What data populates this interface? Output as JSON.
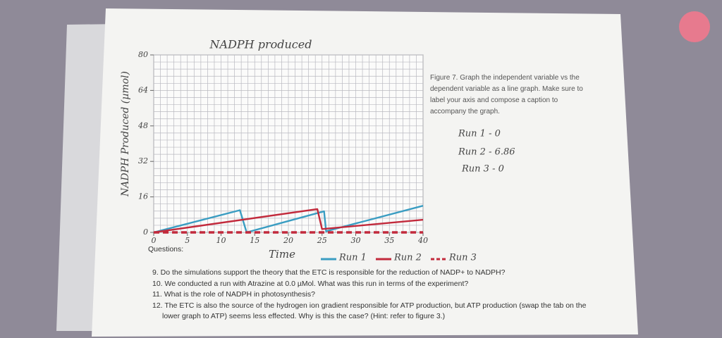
{
  "chart_data": {
    "type": "line",
    "title": "NADPH produced",
    "x_label": "Time",
    "y_label": "NADPH Produced (µmol)",
    "xlim": [
      0,
      40
    ],
    "xticks": [
      0,
      5,
      10,
      15,
      20,
      25,
      30,
      35,
      40
    ],
    "ylim": [
      0,
      80
    ],
    "yticks": [
      0,
      16,
      32,
      48,
      64,
      80
    ],
    "series": [
      {
        "name": "Run 1",
        "color": "#3a9dc2",
        "x": [
          0,
          12.8,
          13.8,
          25.3,
          25.6,
          40
        ],
        "values": [
          0,
          10,
          0,
          9.5,
          0.5,
          12
        ]
      },
      {
        "name": "Run 2",
        "color": "#c22a3c",
        "x": [
          0,
          24.3,
          25,
          40
        ],
        "values": [
          0,
          10.5,
          1.5,
          5.7
        ]
      },
      {
        "name": "Run 3",
        "color": "#c22a3c",
        "dashed": true,
        "x": [
          0,
          40
        ],
        "values": [
          0,
          0
        ]
      }
    ]
  },
  "annotations": [
    "Run 1 - 0",
    "Run 2 - 6.86",
    "Run 3 - 0"
  ],
  "caption": "Figure 7. Graph the independent variable vs the dependent variable as a line graph. Make sure to label your axis and compose a caption to accompany the graph.",
  "questions": {
    "heading": "Questions:",
    "items": [
      "9. Do the simulations support the theory that the ETC is responsible for the reduction of NADP+ to NADPH?",
      "10. We conducted a run with Atrazine at 0.0 µMol. What was this run in terms of the experiment?",
      "11. What is the role of NADPH in photosynthesis?",
      "12. The ETC is also the source of the hydrogen ion gradient responsible for ATP production, but ATP production (swap the tab on the lower graph to ATP) seems less effected. Why is this the case? (Hint: refer to figure 3.)"
    ]
  }
}
